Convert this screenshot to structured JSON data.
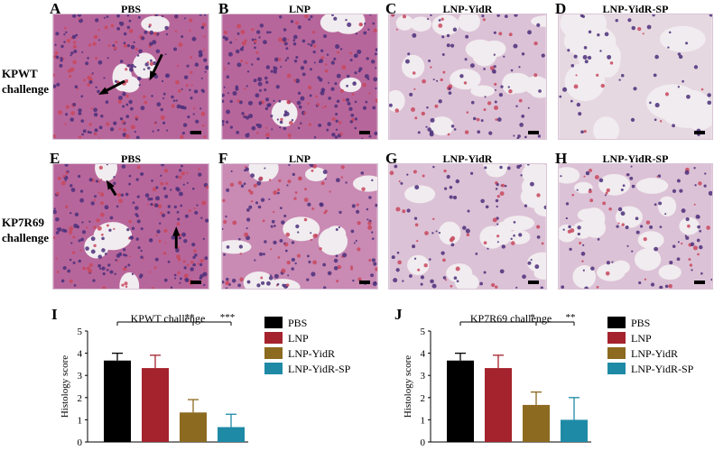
{
  "row_labels": {
    "row1": [
      "KPWT",
      "challenge"
    ],
    "row2": [
      "KP7R69",
      "challenge"
    ]
  },
  "micrographs": [
    {
      "letter": "A",
      "title": "PBS",
      "tone": "dense"
    },
    {
      "letter": "B",
      "title": "LNP",
      "tone": "dense"
    },
    {
      "letter": "C",
      "title": "LNP-YidR",
      "tone": "open"
    },
    {
      "letter": "D",
      "title": "LNP-YidR-SP",
      "tone": "sparse"
    },
    {
      "letter": "E",
      "title": "PBS",
      "tone": "dense"
    },
    {
      "letter": "F",
      "title": "LNP",
      "tone": "medium"
    },
    {
      "letter": "G",
      "title": "LNP-YidR",
      "tone": "open"
    },
    {
      "letter": "H",
      "title": "LNP-YidR-SP",
      "tone": "open"
    }
  ],
  "colors": {
    "PBS": "#000000",
    "LNP": "#a4232c",
    "LNP-YidR": "#8c6a1f",
    "LNP-YidR-SP": "#1f8aa6"
  },
  "chart_data": [
    {
      "panel": "I",
      "type": "bar",
      "title": "KPWT challenge",
      "ylabel": "Histology score",
      "ylim": [
        0,
        5
      ],
      "yticks": [
        0,
        1,
        2,
        3,
        4,
        5
      ],
      "categories": [
        "PBS",
        "LNP",
        "LNP-YidR",
        "LNP-YidR-SP"
      ],
      "values": [
        3.67,
        3.33,
        1.33,
        0.67
      ],
      "errors": [
        0.33,
        0.58,
        0.58,
        0.58
      ],
      "significance": [
        {
          "from": 0,
          "to": 2,
          "label": "**"
        },
        {
          "from": 0,
          "to": 3,
          "label": "***"
        }
      ],
      "legend": [
        "PBS",
        "LNP",
        "LNP-YidR",
        "LNP-YidR-SP"
      ],
      "legend_position": "right"
    },
    {
      "panel": "J",
      "type": "bar",
      "title": "KP7R69 challenge",
      "ylabel": "Histology score",
      "ylim": [
        0,
        5
      ],
      "yticks": [
        0,
        1,
        2,
        3,
        4,
        5
      ],
      "categories": [
        "PBS",
        "LNP",
        "LNP-YidR",
        "LNP-YidR-SP"
      ],
      "values": [
        3.67,
        3.33,
        1.67,
        1.0
      ],
      "errors": [
        0.33,
        0.58,
        0.58,
        1.0
      ],
      "significance": [
        {
          "from": 0,
          "to": 2,
          "label": "*"
        },
        {
          "from": 0,
          "to": 3,
          "label": "**"
        }
      ],
      "legend": [
        "PBS",
        "LNP",
        "LNP-YidR",
        "LNP-YidR-SP"
      ],
      "legend_position": "right"
    }
  ]
}
